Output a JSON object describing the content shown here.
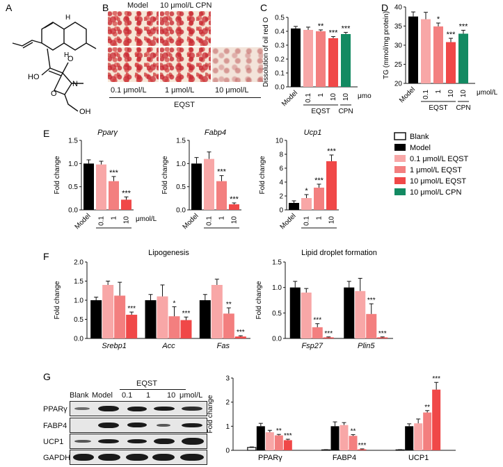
{
  "panels": {
    "A": "A",
    "B": "B",
    "C": "C",
    "D": "D",
    "E": "E",
    "F": "F",
    "G": "G"
  },
  "structure": {
    "labels": [
      "HO",
      "O",
      "O",
      "N",
      "OH",
      "H",
      "H"
    ]
  },
  "micrographs": {
    "top_labels": [
      "Model",
      "10 μmol/L CPN"
    ],
    "bottom_labels": [
      "0.1 μmol/L",
      "1 μmol/L",
      "10 μmol/L"
    ],
    "group_label": "EQST",
    "levels": [
      "heavy",
      "heavy",
      "heavy",
      "heavy",
      "light"
    ]
  },
  "colors": {
    "model": "#000000",
    "eqst_01": "#f8a7a7",
    "eqst_1": "#f37f7f",
    "eqst_10": "#f04848",
    "cpn": "#138a62",
    "blank": "#ffffff"
  },
  "legend": {
    "items": [
      "Blank",
      "Model",
      "0.1 μmol/L EQST",
      " 1 μmol/L EQST",
      "10 μmol/L EQST",
      "10 μmol/L CPN"
    ]
  },
  "chart_data": [
    {
      "id": "C",
      "type": "bar",
      "ylabel": "Dissolution of oil red O",
      "ylim": [
        0,
        0.5
      ],
      "yticks": [
        "0.0",
        "0.1",
        "0.2",
        "0.3",
        "0.4",
        "0.5"
      ],
      "categories": [
        "Model",
        "0.1",
        "1",
        "10",
        "10"
      ],
      "group_labels": [
        "EQST",
        "CPN"
      ],
      "unit": "μmol/L",
      "values": [
        0.42,
        0.41,
        0.4,
        0.35,
        0.38
      ],
      "errors": [
        0.015,
        0.02,
        0.01,
        0.012,
        0.012
      ],
      "stars": [
        "",
        "",
        "**",
        "***",
        "***"
      ]
    },
    {
      "id": "D",
      "type": "bar",
      "ylabel": "TG (mmol/mg protein)",
      "ylim": [
        20,
        40
      ],
      "yticks": [
        "20",
        "25",
        "30",
        "35",
        "40"
      ],
      "categories": [
        "Model",
        "0.1",
        "1",
        "10",
        "10"
      ],
      "group_labels": [
        "EQST",
        "CPN"
      ],
      "unit": "μmol/L",
      "values": [
        37.5,
        36.8,
        34.9,
        30.8,
        33.0
      ],
      "errors": [
        1.2,
        1.8,
        0.9,
        1.0,
        0.9
      ],
      "stars": [
        "",
        "",
        "*",
        "***",
        "***"
      ]
    },
    {
      "id": "E1",
      "type": "bar",
      "title": "Pparγ",
      "ylabel": "Fold change",
      "ylim": [
        0,
        1.5
      ],
      "yticks": [
        "0.0",
        "0.5",
        "1.0",
        "1.5"
      ],
      "categories": [
        "Model",
        "0.1",
        "1",
        "10"
      ],
      "group_label": "EQST",
      "unit": "μmol/L",
      "values": [
        1.0,
        0.98,
        0.62,
        0.22
      ],
      "errors": [
        0.08,
        0.07,
        0.1,
        0.06
      ],
      "stars": [
        "",
        "",
        "***",
        "***"
      ]
    },
    {
      "id": "E2",
      "type": "bar",
      "title": "Fabp4",
      "ylabel": "Fold change",
      "ylim": [
        0,
        1.5
      ],
      "yticks": [
        "0.0",
        "0.5",
        "1.0",
        "1.5"
      ],
      "categories": [
        "Model",
        "0.1",
        "1",
        "10"
      ],
      "group_label": "EQST",
      "values": [
        1.0,
        1.1,
        0.62,
        0.12
      ],
      "errors": [
        0.13,
        0.15,
        0.12,
        0.03
      ],
      "stars": [
        "",
        "",
        "***",
        "***"
      ]
    },
    {
      "id": "E3",
      "type": "bar",
      "title": "Ucp1",
      "ylabel": "Fold change",
      "ylim": [
        0,
        10
      ],
      "yticks": [
        "0",
        "2",
        "4",
        "6",
        "8",
        "10"
      ],
      "categories": [
        "Model",
        "0.1",
        "1",
        "10"
      ],
      "group_label": "EQST",
      "values": [
        1.0,
        1.7,
        3.2,
        7.0
      ],
      "errors": [
        0.3,
        0.5,
        0.5,
        0.9
      ],
      "stars": [
        "",
        "*",
        "***",
        "***"
      ]
    },
    {
      "id": "F1",
      "type": "bar",
      "title": "Lipogenesis",
      "ylabel": "Fold change",
      "ylim": [
        0,
        2.0
      ],
      "yticks": [
        "0.0",
        "0.5",
        "1.0",
        "1.5",
        "2.0"
      ],
      "groups": [
        "Srebp1",
        "Acc",
        "Fas"
      ],
      "series": [
        {
          "values": [
            1.0,
            1.0,
            1.0
          ],
          "errors": [
            0.08,
            0.15,
            0.15
          ],
          "stars": [
            "",
            "",
            ""
          ]
        },
        {
          "values": [
            1.4,
            1.1,
            1.4
          ],
          "errors": [
            0.1,
            0.3,
            0.15
          ],
          "stars": [
            "",
            "",
            ""
          ]
        },
        {
          "values": [
            1.12,
            0.58,
            0.65
          ],
          "errors": [
            0.35,
            0.25,
            0.15
          ],
          "stars": [
            "",
            "*",
            "**"
          ]
        },
        {
          "values": [
            0.62,
            0.48,
            0.05
          ],
          "errors": [
            0.07,
            0.08,
            0.02
          ],
          "stars": [
            "***",
            "***",
            "***"
          ]
        }
      ]
    },
    {
      "id": "F2",
      "type": "bar",
      "title": "Lipid droplet formation",
      "ylabel": "Fold change",
      "ylim": [
        0,
        1.5
      ],
      "yticks": [
        "0.0",
        "0.5",
        "1.0",
        "1.5"
      ],
      "groups": [
        "Fsp27",
        "Plin5"
      ],
      "series": [
        {
          "values": [
            1.0,
            1.0
          ],
          "errors": [
            0.12,
            0.12
          ],
          "stars": [
            "",
            ""
          ]
        },
        {
          "values": [
            0.9,
            0.93
          ],
          "errors": [
            0.08,
            0.25
          ],
          "stars": [
            "",
            ""
          ]
        },
        {
          "values": [
            0.22,
            0.48
          ],
          "errors": [
            0.07,
            0.2
          ],
          "stars": [
            "***",
            "***"
          ]
        },
        {
          "values": [
            0.02,
            0.02
          ],
          "errors": [
            0.01,
            0.01
          ],
          "stars": [
            "***",
            "***"
          ]
        }
      ]
    },
    {
      "id": "G",
      "type": "bar",
      "ylabel": "Fold change",
      "ylim": [
        0,
        3
      ],
      "yticks": [
        "0",
        "1",
        "2",
        "3"
      ],
      "groups": [
        "PPARγ",
        "FABP4",
        "UCP1"
      ],
      "series": [
        {
          "values": [
            0.12,
            0.02,
            0.02
          ],
          "errors": [
            0.02,
            0.01,
            0.01
          ],
          "stars": [
            "",
            "",
            ""
          ]
        },
        {
          "values": [
            1.0,
            1.0,
            1.0
          ],
          "errors": [
            0.12,
            0.18,
            0.1
          ],
          "stars": [
            "",
            "",
            ""
          ]
        },
        {
          "values": [
            0.75,
            1.05,
            1.12
          ],
          "errors": [
            0.08,
            0.1,
            0.18
          ],
          "stars": [
            "",
            "",
            ""
          ]
        },
        {
          "values": [
            0.62,
            0.6,
            1.57
          ],
          "errors": [
            0.04,
            0.05,
            0.08
          ],
          "stars": [
            "**",
            "**",
            "**"
          ]
        },
        {
          "values": [
            0.42,
            0.04,
            2.52
          ],
          "errors": [
            0.04,
            0.02,
            0.3
          ],
          "stars": [
            "***",
            "***",
            "***"
          ]
        }
      ]
    }
  ],
  "blot": {
    "lanes": [
      "Blank",
      "Model",
      "0.1",
      "1",
      "10"
    ],
    "group_label": "EQST",
    "unit": "μmol/L",
    "proteins": [
      "PPARγ",
      "FABP4",
      "UCP1",
      "GAPDH"
    ]
  }
}
